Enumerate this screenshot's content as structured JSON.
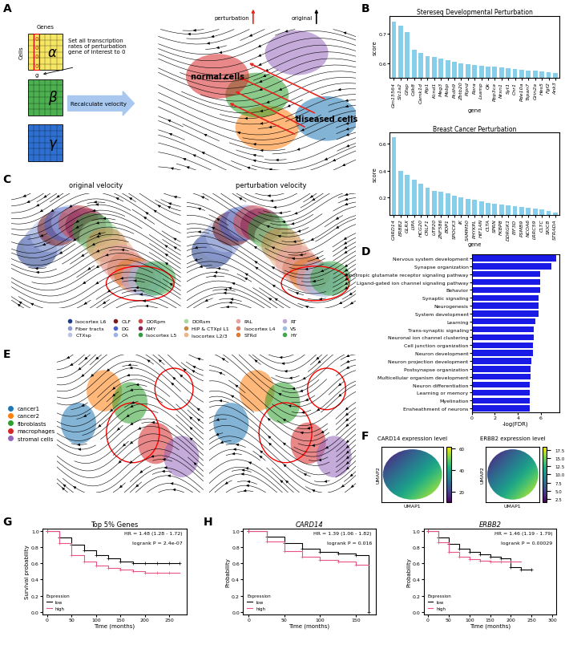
{
  "panel_labels": [
    "A",
    "B",
    "C",
    "D",
    "E",
    "F",
    "G",
    "H"
  ],
  "panel_A": {
    "columns_label": "Genes",
    "rows_label": "Cells",
    "gene": "g",
    "zeros": [
      "0",
      "0",
      "0",
      "0"
    ],
    "symbols": [
      "α",
      "β",
      "γ"
    ],
    "instruction": "Set all transcription rates of perturbation gene of interest to 0",
    "step": "Recalculate velocity",
    "arrow_labels": [
      {
        "text": "perturbation",
        "color": "#e8251f"
      },
      {
        "text": "original",
        "color": "#000000"
      }
    ],
    "cell_labels": [
      "normal cells",
      "diseased cells"
    ]
  },
  "panel_C": {
    "titles": [
      "original velocity",
      "perturbation velocity"
    ],
    "legend": [
      {
        "name": "Isocortex L6",
        "color": "#1f3b8a"
      },
      {
        "name": "Fiber tracts",
        "color": "#8a9bd6"
      },
      {
        "name": "CTXsp",
        "color": "#b8c4e8"
      },
      {
        "name": "OLF",
        "color": "#7a1c1c"
      },
      {
        "name": "DG",
        "color": "#4a63c9"
      },
      {
        "name": "CA",
        "color": "#9db0e8"
      },
      {
        "name": "DORpm",
        "color": "#d44a4a"
      },
      {
        "name": "AMY",
        "color": "#8b2252"
      },
      {
        "name": "Isocortex L5",
        "color": "#2e9e3e"
      },
      {
        "name": "DORsm",
        "color": "#a8d8a0"
      },
      {
        "name": "HIP & CTXpl L1",
        "color": "#c48a4a"
      },
      {
        "name": "Isocortex L2/3",
        "color": "#e8b48a"
      },
      {
        "name": "PAL",
        "color": "#e8a0a0"
      },
      {
        "name": "Isocortex L4",
        "color": "#d9826a"
      },
      {
        "name": "STRd",
        "color": "#e07a30"
      },
      {
        "name": "RT",
        "color": "#c0a8d8"
      },
      {
        "name": "VS",
        "color": "#9ec0e0"
      },
      {
        "name": "HY",
        "color": "#3ea84a"
      }
    ]
  },
  "panel_E": {
    "legend": [
      {
        "name": "cancer1",
        "color": "#1f77b4"
      },
      {
        "name": "cancer2",
        "color": "#ff7f0e"
      },
      {
        "name": "fibroblasts",
        "color": "#2ca02c"
      },
      {
        "name": "macrophages",
        "color": "#d62728"
      },
      {
        "name": "stromal cells",
        "color": "#9467bd"
      }
    ]
  },
  "panel_F": {
    "maps": [
      {
        "title": "CARD14 expression level",
        "xlabel": "UMAP1",
        "ylabel": "UMAP2",
        "colorbar_range": [
          10,
          62
        ],
        "colorbar_ticks": [
          20,
          40,
          60
        ]
      },
      {
        "title": "ERBB2 expression level",
        "xlabel": "UMAP1",
        "ylabel": "UMAP2",
        "colorbar_range": [
          1.5,
          18.5
        ],
        "colorbar_ticks": [
          2.5,
          5.0,
          7.5,
          10.0,
          12.5,
          15.0,
          17.5
        ]
      }
    ]
  },
  "chart_data": [
    {
      "type": "bar",
      "title": "Stereseq Developmental Perturbation",
      "xlabel": "gene",
      "ylabel": "score",
      "categories": [
        "Gm15564",
        "Slc1a2",
        "Gfap",
        "Cdk8",
        "Camk1d",
        "Plp1",
        "Kcnd1",
        "Meg3",
        "Mobp",
        "Pcdh9",
        "Zbtb20",
        "Ptprd",
        "Rora",
        "Lsamp",
        "Qk",
        "Ppp3ca",
        "Nrxn1",
        "Syt1",
        "Cnr1",
        "Pde10a",
        "Tspan7",
        "Grin2a",
        "Hes5",
        "Fgf2",
        "Ank3"
      ],
      "values": [
        0.74,
        0.725,
        0.705,
        0.645,
        0.635,
        0.625,
        0.62,
        0.615,
        0.61,
        0.605,
        0.6,
        0.598,
        0.595,
        0.592,
        0.59,
        0.588,
        0.585,
        0.583,
        0.58,
        0.578,
        0.576,
        0.574,
        0.572,
        0.57,
        0.568
      ],
      "color": "#87ceeb",
      "ylim": [
        0.55,
        0.76
      ],
      "yticks": [
        0.6,
        0.7
      ]
    },
    {
      "type": "bar",
      "title": "Breast Cancer Perturbation",
      "xlabel": "gene",
      "ylabel": "score",
      "categories": [
        "CARD14",
        "ERBB2",
        "GLRX",
        "LIPA",
        "HCG20",
        "CRLF1",
        "UTP20",
        "ZNF586",
        "BOP1",
        "SPOCK3",
        "IK",
        "SAMM50",
        "PHYKPL",
        "HIF1AN",
        "CLTA",
        "SPRN",
        "FKBP8",
        "DDRGK1",
        "EIF3D",
        "PSMB9",
        "NCOA6",
        "LRRC59",
        "CLTC",
        "SKIC8",
        "STRADA"
      ],
      "values": [
        0.65,
        0.4,
        0.37,
        0.33,
        0.3,
        0.27,
        0.25,
        0.24,
        0.23,
        0.21,
        0.2,
        0.19,
        0.18,
        0.17,
        0.16,
        0.155,
        0.15,
        0.14,
        0.135,
        0.13,
        0.125,
        0.12,
        0.11,
        0.1,
        0.09
      ],
      "color": "#87ceeb",
      "ylim": [
        0.07,
        0.68
      ],
      "yticks": [
        0.2,
        0.4,
        0.6
      ]
    },
    {
      "type": "bar",
      "orientation": "horizontal",
      "xlabel": "-log(FDR)",
      "categories": [
        "Nervous system development",
        "Synapse organization",
        "Ionotropic glutamate receptor signaling pathway",
        "Ligand-gated ion channel signaling pathway",
        "Behavior",
        "Synaptic signaling",
        "Neurogenesis",
        "System development",
        "Learning",
        "Trans-synaptic signaling",
        "Neuronal ion channel clustering",
        "Cell junction organization",
        "Neuron development",
        "Neuron projection development",
        "Postsynapse organization",
        "Multicellular organism development",
        "Neuron differentiation",
        "Learning or memory",
        "Myelination",
        "Ensheathment of neurons"
      ],
      "values": [
        7.3,
        6.9,
        5.9,
        5.9,
        5.9,
        5.8,
        5.8,
        5.8,
        5.5,
        5.4,
        5.4,
        5.3,
        5.3,
        5.2,
        5.1,
        5.1,
        5.0,
        5.0,
        5.0,
        5.0
      ],
      "color": "#1a1ae6",
      "xlim": [
        0,
        7.6
      ],
      "xticks": [
        0,
        2,
        4,
        6
      ]
    },
    {
      "type": "line",
      "title": "Top 5% Genes",
      "xlabel": "Time (months)",
      "ylabel": "Survival probability",
      "x": [
        0,
        25,
        50,
        75,
        100,
        125,
        150,
        175,
        200,
        225,
        250,
        270
      ],
      "series": [
        {
          "name": "low",
          "color": "#000000",
          "marker": "+",
          "line_style": "steps",
          "values": [
            1.0,
            0.92,
            0.83,
            0.76,
            0.7,
            0.66,
            0.62,
            0.6,
            0.6,
            0.6,
            0.6,
            0.6
          ]
        },
        {
          "name": "high",
          "color": "#e75480",
          "marker": "+",
          "line_style": "steps",
          "values": [
            1.0,
            0.85,
            0.7,
            0.62,
            0.57,
            0.54,
            0.52,
            0.5,
            0.48,
            0.48,
            0.48,
            null
          ]
        }
      ],
      "xlim": [
        -10,
        285
      ],
      "xticks": [
        0,
        50,
        100,
        150,
        200,
        250
      ],
      "ylim": [
        -0.03,
        1.03
      ],
      "yticks": [
        0.0,
        0.2,
        0.4,
        0.6,
        0.8,
        1.0
      ],
      "legend": "lower left",
      "legend_title": "Expression",
      "annotations": [
        "HR = 1.48 (1.28 - 1.72)",
        "logrank P = 2.4e-07"
      ]
    },
    {
      "type": "line",
      "title": "CARD14",
      "xlabel": "Time (months)",
      "ylabel": "Probability",
      "x": [
        0,
        25,
        50,
        75,
        100,
        125,
        150,
        168
      ],
      "series": [
        {
          "name": "low",
          "color": "#000000",
          "marker": "+",
          "line_style": "steps",
          "values": [
            1.0,
            0.93,
            0.85,
            0.78,
            0.74,
            0.72,
            0.7,
            0.0
          ]
        },
        {
          "name": "high",
          "color": "#e75480",
          "marker": "+",
          "line_style": "steps",
          "values": [
            1.0,
            0.87,
            0.75,
            0.68,
            0.64,
            0.62,
            0.58,
            null
          ]
        }
      ],
      "xlim": [
        -8,
        178
      ],
      "xticks": [
        0,
        50,
        100,
        150
      ],
      "ylim": [
        -0.03,
        1.03
      ],
      "yticks": [
        0.0,
        0.2,
        0.4,
        0.6,
        0.8,
        1.0
      ],
      "legend": "lower left",
      "legend_title": "Expression",
      "annotations": [
        "HR = 1.39 (1.06 - 1.82)",
        "logrank P = 0.016"
      ]
    },
    {
      "type": "line",
      "title": "ERBB2",
      "xlabel": "Time (months)",
      "ylabel": "Probability",
      "x": [
        0,
        25,
        50,
        75,
        100,
        125,
        150,
        175,
        200,
        225,
        250
      ],
      "series": [
        {
          "name": "low",
          "color": "#000000",
          "marker": "+",
          "line_style": "steps",
          "values": [
            1.0,
            0.92,
            0.84,
            0.78,
            0.74,
            0.71,
            0.68,
            0.66,
            0.55,
            0.52,
            0.52
          ]
        },
        {
          "name": "high",
          "color": "#e75480",
          "marker": "+",
          "line_style": "steps",
          "values": [
            1.0,
            0.86,
            0.74,
            0.68,
            0.65,
            0.63,
            0.62,
            0.62,
            0.62,
            null,
            null
          ]
        }
      ],
      "xlim": [
        -10,
        310
      ],
      "xticks": [
        0,
        50,
        100,
        150,
        200,
        250,
        300
      ],
      "ylim": [
        -0.03,
        1.03
      ],
      "yticks": [
        0.0,
        0.2,
        0.4,
        0.6,
        0.8,
        1.0
      ],
      "legend": "lower left",
      "legend_title": "Expression",
      "annotations": [
        "HR = 1.46 (1.19 - 1.79)",
        "logrank P = 0.00029"
      ]
    }
  ]
}
